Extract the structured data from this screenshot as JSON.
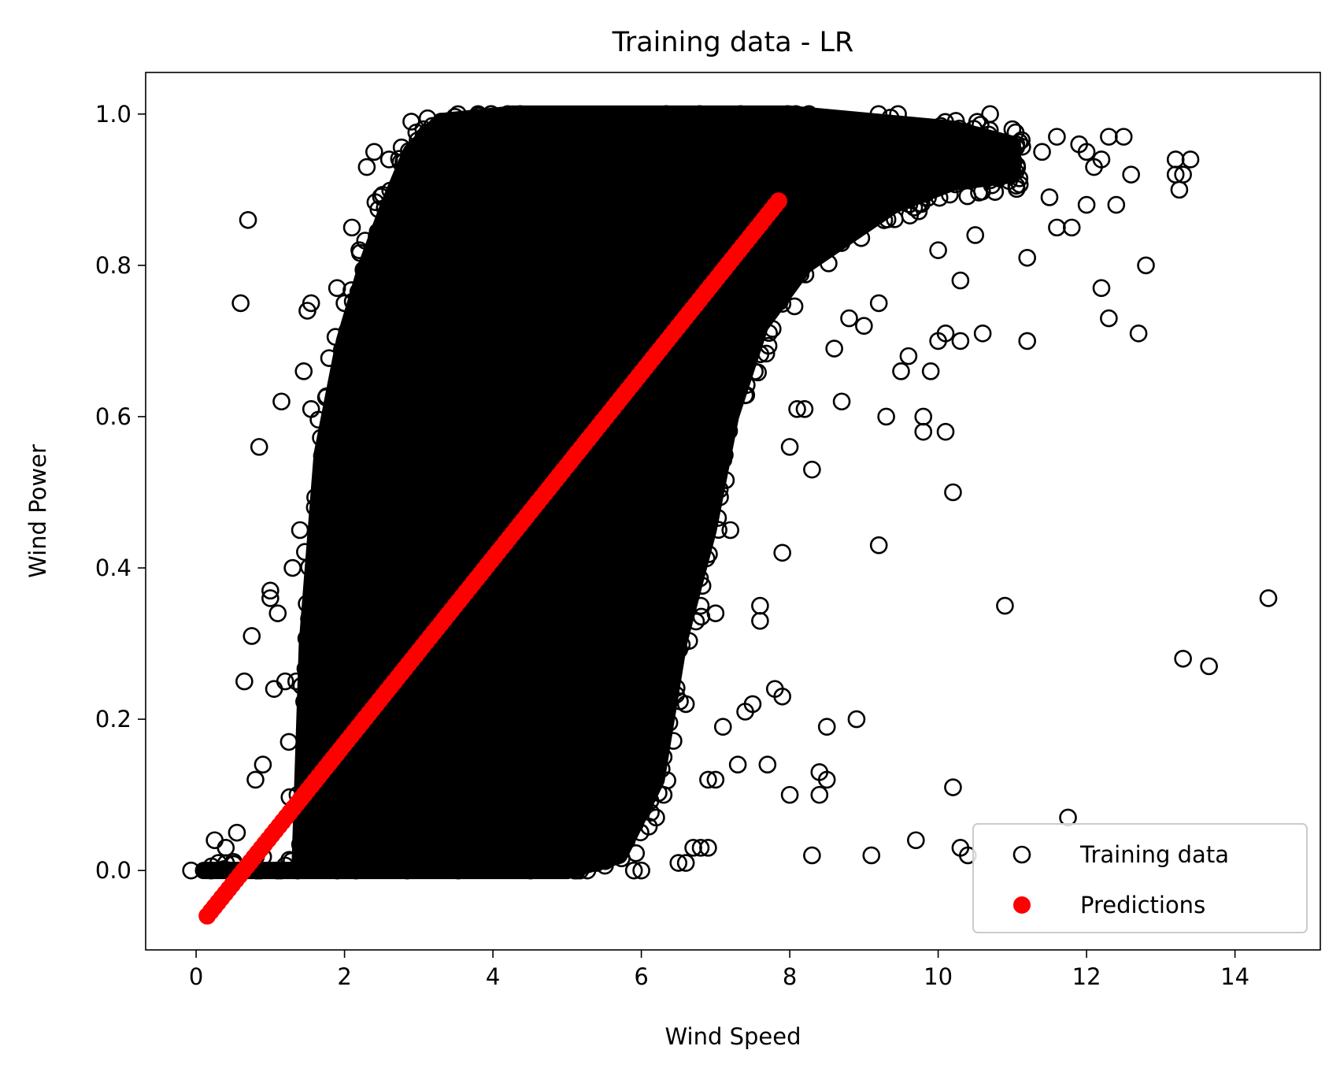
{
  "chart_data": {
    "type": "scatter",
    "title": "Training data - LR",
    "xlabel": "Wind Speed",
    "ylabel": "Wind Power",
    "xlim": [
      -0.68,
      15.15
    ],
    "ylim": [
      -0.105,
      1.055
    ],
    "xticks": [
      0,
      2,
      4,
      6,
      8,
      10,
      12,
      14
    ],
    "xtick_labels": [
      "0",
      "2",
      "4",
      "6",
      "8",
      "10",
      "12",
      "14"
    ],
    "yticks": [
      0.0,
      0.2,
      0.4,
      0.6,
      0.8,
      1.0
    ],
    "ytick_labels": [
      "0.0",
      "0.2",
      "0.4",
      "0.6",
      "0.8",
      "1.0"
    ],
    "grid": false,
    "legend_position": "lower right",
    "colors": {
      "training": "#000000",
      "predictions": "#ff0000"
    },
    "series": [
      {
        "name": "Training data",
        "marker": "open-circle",
        "color": "#000000",
        "dense_band": {
          "description_points": "bulk of observations, approximate envelope of the dense cloud",
          "boundary": [
            [
              0.1,
              0.0
            ],
            [
              1.4,
              0.0
            ],
            [
              1.5,
              0.3
            ],
            [
              1.7,
              0.55
            ],
            [
              2.0,
              0.7
            ],
            [
              2.3,
              0.8
            ],
            [
              2.6,
              0.88
            ],
            [
              2.9,
              0.95
            ],
            [
              3.3,
              0.99
            ],
            [
              4.3,
              1.0
            ],
            [
              8.0,
              1.0
            ],
            [
              10.2,
              0.98
            ],
            [
              11.0,
              0.96
            ],
            [
              11.0,
              0.92
            ],
            [
              10.2,
              0.91
            ],
            [
              9.4,
              0.88
            ],
            [
              8.2,
              0.8
            ],
            [
              7.6,
              0.72
            ],
            [
              7.2,
              0.6
            ],
            [
              6.9,
              0.45
            ],
            [
              6.5,
              0.3
            ],
            [
              6.2,
              0.12
            ],
            [
              5.7,
              0.02
            ],
            [
              5.0,
              0.0
            ],
            [
              0.1,
              0.0
            ]
          ]
        },
        "points": [
          [
            0.2,
            0.0
          ],
          [
            0.3,
            0.01
          ],
          [
            0.25,
            0.04
          ],
          [
            0.4,
            0.03
          ],
          [
            0.55,
            0.05
          ],
          [
            0.7,
            0.86
          ],
          [
            0.6,
            0.75
          ],
          [
            0.65,
            0.25
          ],
          [
            0.75,
            0.31
          ],
          [
            0.85,
            0.56
          ],
          [
            0.8,
            0.12
          ],
          [
            0.9,
            0.14
          ],
          [
            1.0,
            0.37
          ],
          [
            1.0,
            0.36
          ],
          [
            1.05,
            0.24
          ],
          [
            1.1,
            0.34
          ],
          [
            1.15,
            0.62
          ],
          [
            1.2,
            0.25
          ],
          [
            1.25,
            0.17
          ],
          [
            1.3,
            0.4
          ],
          [
            1.35,
            0.25
          ],
          [
            1.4,
            0.45
          ],
          [
            1.45,
            0.66
          ],
          [
            1.5,
            0.74
          ],
          [
            1.55,
            0.75
          ],
          [
            1.55,
            0.61
          ],
          [
            1.6,
            0.48
          ],
          [
            1.7,
            0.5
          ],
          [
            1.8,
            0.57
          ],
          [
            1.9,
            0.77
          ],
          [
            2.0,
            0.75
          ],
          [
            2.1,
            0.85
          ],
          [
            2.2,
            0.82
          ],
          [
            2.3,
            0.93
          ],
          [
            2.4,
            0.95
          ],
          [
            2.6,
            0.94
          ],
          [
            2.9,
            0.99
          ],
          [
            3.3,
            0.99
          ],
          [
            3.8,
            1.0
          ],
          [
            4.2,
            1.0
          ],
          [
            5.1,
            0.0
          ],
          [
            5.2,
            0.02
          ],
          [
            5.4,
            0.01
          ],
          [
            5.6,
            0.05
          ],
          [
            5.9,
            0.0
          ],
          [
            6.0,
            0.0
          ],
          [
            6.2,
            0.07
          ],
          [
            6.3,
            0.1
          ],
          [
            6.5,
            0.01
          ],
          [
            6.6,
            0.01
          ],
          [
            6.7,
            0.03
          ],
          [
            6.8,
            0.03
          ],
          [
            6.9,
            0.03
          ],
          [
            6.3,
            0.15
          ],
          [
            6.4,
            0.3
          ],
          [
            6.6,
            0.22
          ],
          [
            6.8,
            0.35
          ],
          [
            6.9,
            0.12
          ],
          [
            7.0,
            0.12
          ],
          [
            7.0,
            0.34
          ],
          [
            7.1,
            0.19
          ],
          [
            7.2,
            0.45
          ],
          [
            7.3,
            0.14
          ],
          [
            7.4,
            0.21
          ],
          [
            7.5,
            0.22
          ],
          [
            7.6,
            0.33
          ],
          [
            7.6,
            0.35
          ],
          [
            7.7,
            0.14
          ],
          [
            7.8,
            0.24
          ],
          [
            7.9,
            0.42
          ],
          [
            7.9,
            0.23
          ],
          [
            8.0,
            0.1
          ],
          [
            8.0,
            0.56
          ],
          [
            8.1,
            0.61
          ],
          [
            8.2,
            0.61
          ],
          [
            8.3,
            0.53
          ],
          [
            8.3,
            0.02
          ],
          [
            8.4,
            0.13
          ],
          [
            8.4,
            0.1
          ],
          [
            8.5,
            0.19
          ],
          [
            8.5,
            0.12
          ],
          [
            8.6,
            0.69
          ],
          [
            8.7,
            0.62
          ],
          [
            8.8,
            0.73
          ],
          [
            8.9,
            0.2
          ],
          [
            9.0,
            0.72
          ],
          [
            9.1,
            0.02
          ],
          [
            9.2,
            0.75
          ],
          [
            9.2,
            0.43
          ],
          [
            9.3,
            0.6
          ],
          [
            9.5,
            0.66
          ],
          [
            9.6,
            0.68
          ],
          [
            9.7,
            0.04
          ],
          [
            9.8,
            0.6
          ],
          [
            9.8,
            0.58
          ],
          [
            9.9,
            0.66
          ],
          [
            10.0,
            0.82
          ],
          [
            10.0,
            0.7
          ],
          [
            10.1,
            0.71
          ],
          [
            10.1,
            0.58
          ],
          [
            10.2,
            0.11
          ],
          [
            10.2,
            0.5
          ],
          [
            10.3,
            0.78
          ],
          [
            10.3,
            0.7
          ],
          [
            10.3,
            0.03
          ],
          [
            10.4,
            0.02
          ],
          [
            10.5,
            0.84
          ],
          [
            10.6,
            0.71
          ],
          [
            10.9,
            0.35
          ],
          [
            11.2,
            0.81
          ],
          [
            11.2,
            0.7
          ],
          [
            11.5,
            0.89
          ],
          [
            11.6,
            0.85
          ],
          [
            11.8,
            0.85
          ],
          [
            11.75,
            0.07
          ],
          [
            12.0,
            0.88
          ],
          [
            12.2,
            0.77
          ],
          [
            12.3,
            0.73
          ],
          [
            12.4,
            0.88
          ],
          [
            12.7,
            0.71
          ],
          [
            12.8,
            0.8
          ],
          [
            13.2,
            0.94
          ],
          [
            13.2,
            0.92
          ],
          [
            13.25,
            0.9
          ],
          [
            13.3,
            0.92
          ],
          [
            13.3,
            0.28
          ],
          [
            13.4,
            0.94
          ],
          [
            13.65,
            0.27
          ],
          [
            14.45,
            0.36
          ],
          [
            11.4,
            0.95
          ],
          [
            11.6,
            0.97
          ],
          [
            11.9,
            0.96
          ],
          [
            12.0,
            0.95
          ],
          [
            12.1,
            0.93
          ],
          [
            12.2,
            0.94
          ],
          [
            12.3,
            0.97
          ],
          [
            12.5,
            0.97
          ],
          [
            12.6,
            0.92
          ],
          [
            10.7,
            1.0
          ],
          [
            11.0,
            0.98
          ]
        ]
      },
      {
        "name": "Predictions",
        "marker": "filled-circle",
        "color": "#ff0000",
        "line": {
          "x_start": 0.15,
          "y_start": -0.06,
          "x_end": 7.85,
          "y_end": 0.885,
          "n_points": 160
        }
      }
    ]
  }
}
